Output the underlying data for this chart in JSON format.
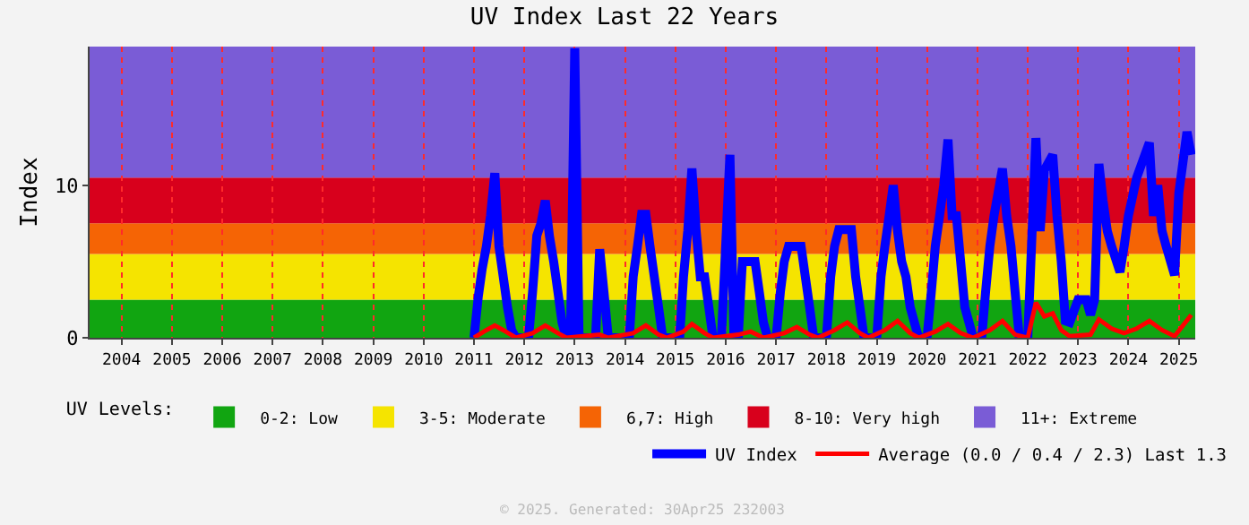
{
  "chart_data": {
    "type": "line",
    "title": "UV Index Last 22 Years",
    "ylabel": "Index",
    "legend_title": "UV Levels:",
    "x": [
      "2011-01",
      "2011-02",
      "2011-03",
      "2011-04",
      "2011-05",
      "2011-06",
      "2011-07",
      "2011-08",
      "2011-09",
      "2011-10",
      "2011-11",
      "2012-02",
      "2012-03",
      "2012-04",
      "2012-05",
      "2012-06",
      "2012-07",
      "2012-08",
      "2012-09",
      "2012-10",
      "2012-11",
      "2012-12",
      "2013-01",
      "2013-02",
      "2013-06",
      "2013-07",
      "2013-08",
      "2013-09",
      "2014-02",
      "2014-03",
      "2014-04",
      "2014-05",
      "2014-06",
      "2014-07",
      "2014-08",
      "2014-09",
      "2014-10",
      "2015-02",
      "2015-03",
      "2015-04",
      "2015-05",
      "2015-06",
      "2015-07",
      "2015-08",
      "2015-09",
      "2015-10",
      "2015-12",
      "2016-02",
      "2016-03",
      "2016-04",
      "2016-05",
      "2016-06",
      "2016-07",
      "2016-08",
      "2016-09",
      "2016-10",
      "2016-11",
      "2017-01",
      "2017-02",
      "2017-03",
      "2017-04",
      "2017-05",
      "2017-06",
      "2017-07",
      "2017-08",
      "2017-09",
      "2017-10",
      "2018-01",
      "2018-02",
      "2018-03",
      "2018-04",
      "2018-05",
      "2018-06",
      "2018-07",
      "2018-08",
      "2018-09",
      "2018-10",
      "2019-01",
      "2019-02",
      "2019-03",
      "2019-04",
      "2019-05",
      "2019-06",
      "2019-07",
      "2019-08",
      "2019-09",
      "2019-11",
      "2020-01",
      "2020-02",
      "2020-03",
      "2020-04",
      "2020-05",
      "2020-06",
      "2020-07",
      "2020-08",
      "2020-09",
      "2020-10",
      "2020-12",
      "2021-02",
      "2021-03",
      "2021-04",
      "2021-05",
      "2021-07",
      "2021-08",
      "2021-09",
      "2021-10",
      "2021-11",
      "2022-01",
      "2022-03",
      "2022-04",
      "2022-05",
      "2022-07",
      "2022-08",
      "2022-09",
      "2022-10",
      "2022-11",
      "2023-01",
      "2023-03",
      "2023-04",
      "2023-05",
      "2023-06",
      "2023-07",
      "2023-08",
      "2023-09",
      "2023-11",
      "2023-12",
      "2024-01",
      "2024-03",
      "2024-06",
      "2024-07",
      "2024-08",
      "2024-09",
      "2024-10",
      "2024-12",
      "2025-01",
      "2025-03",
      "2025-04"
    ],
    "series": [
      {
        "name": "UV Index",
        "color": "#0000ff",
        "values": [
          0,
          2.7,
          4.5,
          6,
          8,
          10.8,
          6,
          4,
          2,
          0.5,
          0,
          0,
          3,
          6.7,
          7.5,
          9.0,
          6.7,
          5,
          3,
          1,
          0,
          0,
          19,
          0,
          0,
          5.8,
          3,
          0,
          0,
          4,
          6,
          8.1,
          8.1,
          6,
          4,
          2,
          0,
          0,
          4,
          7,
          11.1,
          7,
          4,
          4,
          2,
          0,
          0,
          12.0,
          0,
          0,
          5,
          5,
          5,
          5,
          3,
          1,
          0,
          0,
          3,
          5,
          6,
          6,
          6,
          6,
          4,
          2,
          0,
          0,
          4,
          6,
          7.1,
          7.1,
          7.1,
          7.1,
          4,
          2,
          0,
          0,
          4,
          6,
          8,
          10.0,
          7,
          5,
          4,
          2,
          0,
          0,
          3,
          6,
          8,
          10,
          13.0,
          8,
          8,
          5,
          2,
          0,
          0,
          3,
          6,
          8,
          11.1,
          8,
          6,
          3,
          0,
          0,
          13.1,
          7,
          11,
          12.0,
          8,
          5,
          1.1,
          1,
          2.5,
          2.5,
          1.5,
          2.5,
          11.4,
          9,
          7,
          6,
          4.3,
          6,
          8,
          10.5,
          12.8,
          8,
          10,
          7,
          6,
          4.1,
          9.5,
          13.5,
          12
        ]
      },
      {
        "name": "Average (0.0 / 0.4 / 2.3) Last 1.3",
        "color": "#ff0000",
        "x": [
          "2011-01",
          "2011-04",
          "2011-06",
          "2011-08",
          "2011-11",
          "2012-03",
          "2012-06",
          "2012-09",
          "2012-11",
          "2013-07",
          "2013-09",
          "2014-03",
          "2014-06",
          "2014-09",
          "2014-11",
          "2015-03",
          "2015-05",
          "2015-08",
          "2015-10",
          "2016-04",
          "2016-07",
          "2016-10",
          "2017-03",
          "2017-06",
          "2017-09",
          "2017-11",
          "2018-03",
          "2018-06",
          "2018-09",
          "2018-11",
          "2019-03",
          "2019-06",
          "2019-09",
          "2019-11",
          "2020-03",
          "2020-06",
          "2020-09",
          "2020-12",
          "2021-04",
          "2021-07",
          "2021-10",
          "2022-01",
          "2022-03",
          "2022-05",
          "2022-07",
          "2022-09",
          "2022-11",
          "2023-04",
          "2023-06",
          "2023-09",
          "2023-12",
          "2024-03",
          "2024-06",
          "2024-09",
          "2024-12",
          "2025-04"
        ],
        "values": [
          0,
          0.5,
          0.8,
          0.5,
          0,
          0.3,
          0.8,
          0.3,
          0,
          0.2,
          0,
          0.3,
          0.8,
          0.2,
          0,
          0.4,
          0.9,
          0.3,
          0,
          0.2,
          0.4,
          0,
          0.3,
          0.7,
          0.2,
          0,
          0.5,
          1.0,
          0.3,
          0,
          0.5,
          1.1,
          0.3,
          0,
          0.4,
          0.9,
          0.3,
          0,
          0.5,
          1.1,
          0.2,
          0,
          2.3,
          1.4,
          1.6,
          0.5,
          0.1,
          0.2,
          1.2,
          0.6,
          0.3,
          0.6,
          1.1,
          0.5,
          0.1,
          1.5
        ]
      }
    ],
    "bands": [
      {
        "axis": "y",
        "from": 0,
        "to": 2.5,
        "label": "0-2: Low",
        "color": "#11a511"
      },
      {
        "axis": "y",
        "from": 2.5,
        "to": 5.5,
        "label": "3-5: Moderate",
        "color": "#f5e400"
      },
      {
        "axis": "y",
        "from": 5.5,
        "to": 7.5,
        "label": "6,7: High",
        "color": "#f56405"
      },
      {
        "axis": "y",
        "from": 7.5,
        "to": 10.5,
        "label": "8-10: Very high",
        "color": "#d8001c"
      },
      {
        "axis": "y",
        "from": 10.5,
        "to": 19.1,
        "label": "11+: Extreme",
        "color": "#7a5cd6"
      }
    ],
    "xlim": [
      "2003-05-14",
      "2025-04-30"
    ],
    "xticks": [
      "2004",
      "2005",
      "2006",
      "2007",
      "2008",
      "2009",
      "2010",
      "2011",
      "2012",
      "2013",
      "2014",
      "2015",
      "2016",
      "2017",
      "2018",
      "2019",
      "2020",
      "2021",
      "2022",
      "2023",
      "2024",
      "2025"
    ],
    "ylim": [
      0,
      19.1
    ],
    "yticks": [
      0,
      10
    ],
    "grid": "x",
    "legend": "bottom",
    "marker": "none",
    "line_style": "solid",
    "annotations": [
      "© 2025. Generated: 30Apr25 232003"
    ]
  }
}
